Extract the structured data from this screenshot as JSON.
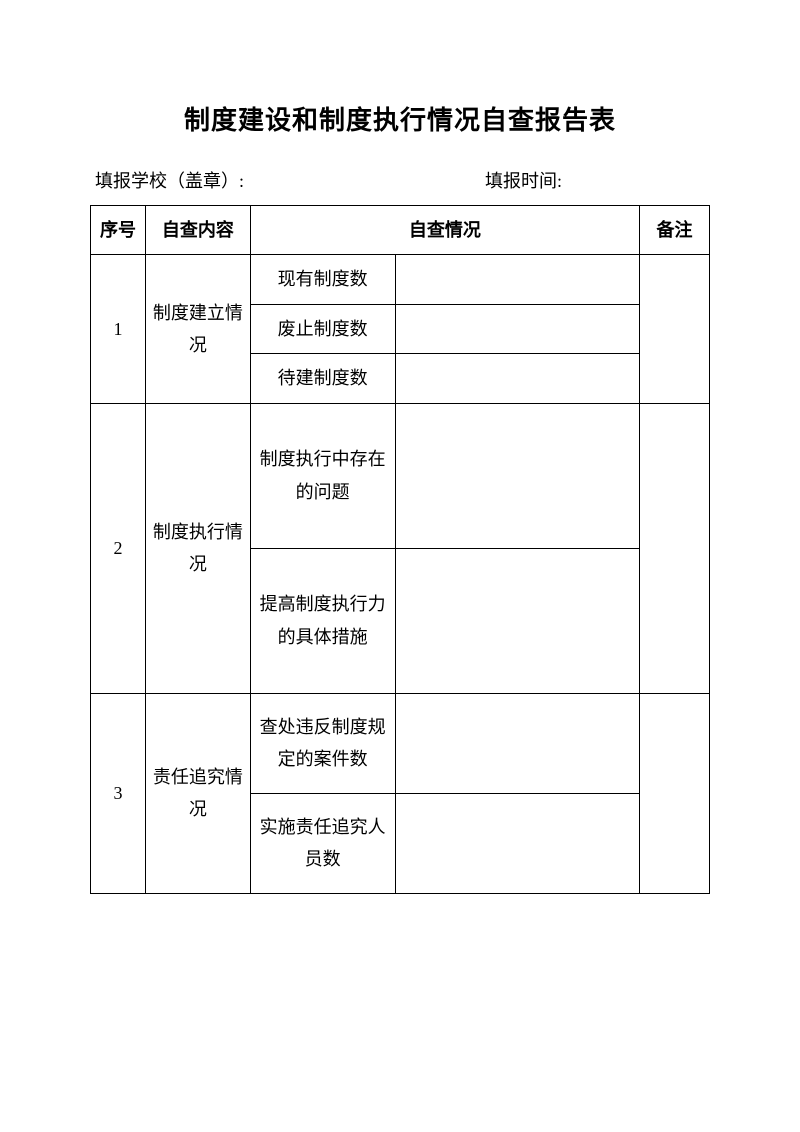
{
  "title": "制度建设和制度执行情况自查报告表",
  "meta": {
    "school_label": "填报学校（盖章）:",
    "time_label": "填报时间:"
  },
  "headers": {
    "seq": "序号",
    "content": "自查内容",
    "situation": "自查情况",
    "remark": "备注"
  },
  "rows": [
    {
      "seq": "1",
      "content": "制度建立情况",
      "subs": [
        {
          "label": "现有制度数",
          "value": ""
        },
        {
          "label": "废止制度数",
          "value": ""
        },
        {
          "label": "待建制度数",
          "value": ""
        }
      ],
      "remark": ""
    },
    {
      "seq": "2",
      "content": "制度执行情况",
      "subs": [
        {
          "label": "制度执行中存在的问题",
          "value": ""
        },
        {
          "label": "提高制度执行力的具体措施",
          "value": ""
        }
      ],
      "remark": ""
    },
    {
      "seq": "3",
      "content": "责任追究情况",
      "subs": [
        {
          "label": "查处违反制度规定的案件数",
          "value": ""
        },
        {
          "label": "实施责任追究人员数",
          "value": ""
        }
      ],
      "remark": ""
    }
  ],
  "colors": {
    "text": "#000000",
    "border": "#000000",
    "background": "#ffffff"
  }
}
